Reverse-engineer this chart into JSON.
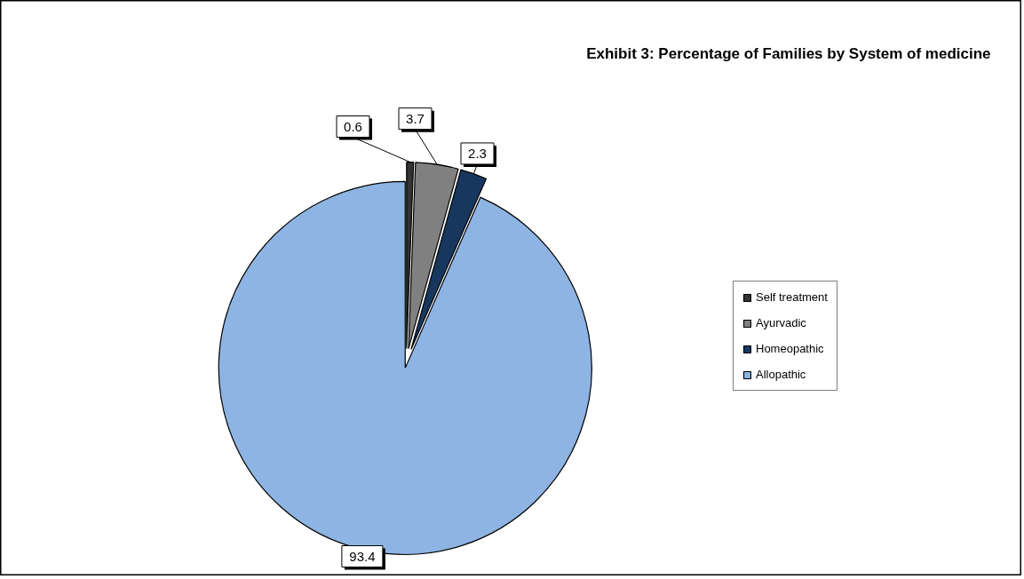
{
  "chart_data": {
    "type": "pie",
    "title": "Exhibit 3: Percentage of Families by System of medicine",
    "categories": [
      "Self treatment",
      "Ayurvadic",
      "Homeopathic",
      "Allopathic"
    ],
    "values": [
      0.6,
      3.7,
      2.3,
      93.4
    ],
    "colors": [
      "#333333",
      "#808080",
      "#17375e",
      "#8eb4e3"
    ],
    "data_labels": true,
    "legend": "right"
  }
}
